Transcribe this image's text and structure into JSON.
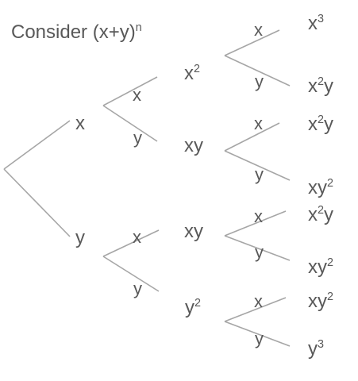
{
  "title": {
    "text": "Consider (x+y)",
    "exp": "n"
  },
  "colors": {
    "edge": "#a6a6a6",
    "text": "#595959"
  },
  "level1": {
    "top": {
      "base": "x"
    },
    "bottom": {
      "base": "y"
    }
  },
  "level2": {
    "branch_x_top_label": "x",
    "branch_x_bottom_label": "y",
    "branch_y_top_label": "x",
    "branch_y_bottom_label": "y",
    "terms": [
      {
        "base": "x",
        "exp": "2"
      },
      {
        "base": "xy",
        "exp": ""
      },
      {
        "base": "xy",
        "exp": ""
      },
      {
        "base": "y",
        "exp": "2"
      }
    ]
  },
  "level3": {
    "labels": [
      {
        "top": "x",
        "bottom": "y"
      },
      {
        "top": "x",
        "bottom": "y"
      },
      {
        "top": "x",
        "bottom": "y"
      },
      {
        "top": "x",
        "bottom": "y"
      }
    ],
    "terms": [
      {
        "a": "x",
        "a_exp": "3",
        "b": "",
        "b_exp": ""
      },
      {
        "a": "x",
        "a_exp": "2",
        "b": "y",
        "b_exp": ""
      },
      {
        "a": "x",
        "a_exp": "2",
        "b": "y",
        "b_exp": ""
      },
      {
        "a": "xy",
        "a_exp": "2",
        "b": "",
        "b_exp": ""
      },
      {
        "a": "x",
        "a_exp": "2",
        "b": "y",
        "b_exp": ""
      },
      {
        "a": "xy",
        "a_exp": "2",
        "b": "",
        "b_exp": ""
      },
      {
        "a": "xy",
        "a_exp": "2",
        "b": "",
        "b_exp": ""
      },
      {
        "a": "y",
        "a_exp": "3",
        "b": "",
        "b_exp": ""
      }
    ]
  }
}
